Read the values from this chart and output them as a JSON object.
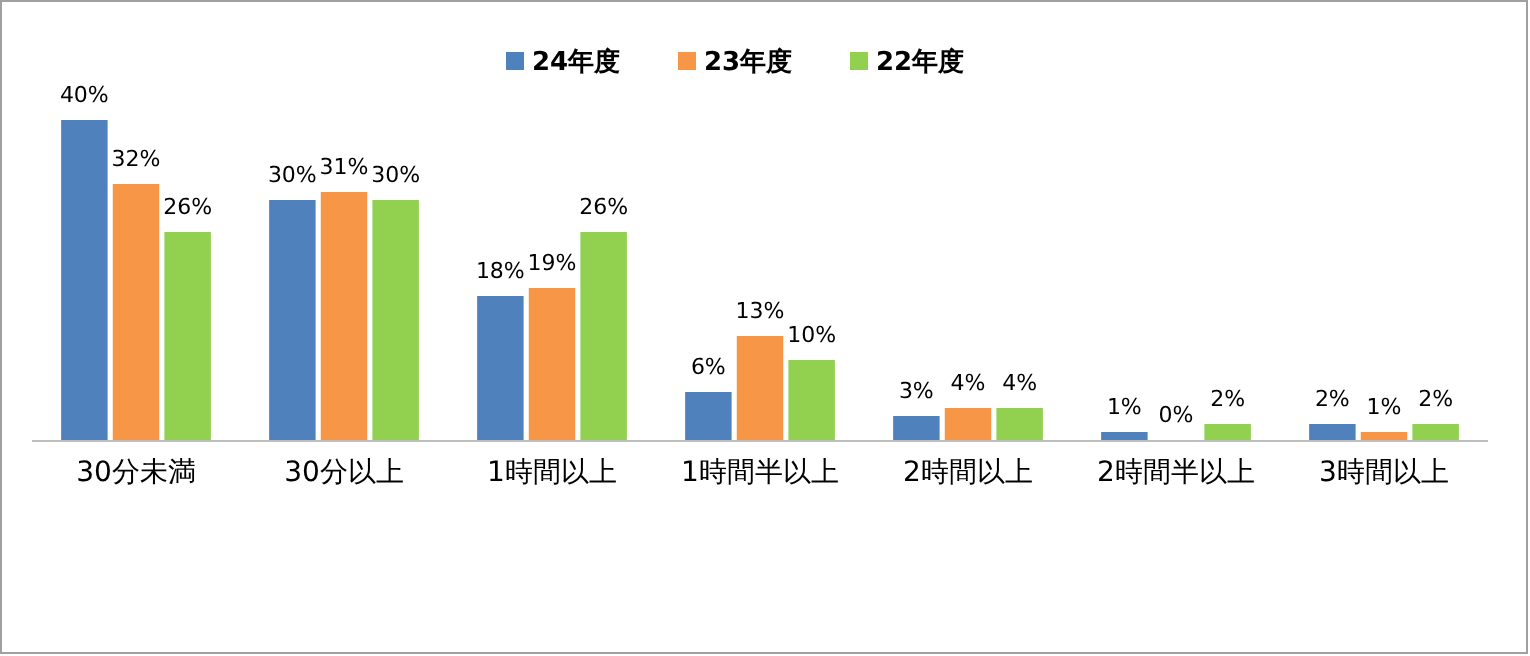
{
  "chart_data": {
    "type": "bar",
    "categories": [
      "30分未満",
      "30分以上",
      "1時間以上",
      "1時間半以上",
      "2時間以上",
      "2時間半以上",
      "3時間以上"
    ],
    "series": [
      {
        "name": "24年度",
        "color": "#4f81bd",
        "values": [
          40,
          30,
          18,
          6,
          3,
          1,
          2
        ],
        "value_labels": [
          "40%",
          "30%",
          "18%",
          "6%",
          "3%",
          "1%",
          "2%"
        ]
      },
      {
        "name": "23年度",
        "color": "#f79646",
        "values": [
          32,
          31,
          19,
          13,
          4,
          0,
          1
        ],
        "value_labels": [
          "32%",
          "31%",
          "19%",
          "13%",
          "4%",
          "0%",
          "1%"
        ]
      },
      {
        "name": "22年度",
        "color": "#92d050",
        "values": [
          26,
          30,
          26,
          10,
          4,
          2,
          2
        ],
        "value_labels": [
          "26%",
          "30%",
          "26%",
          "10%",
          "4%",
          "2%",
          "2%"
        ]
      }
    ],
    "legend": "top"
  }
}
